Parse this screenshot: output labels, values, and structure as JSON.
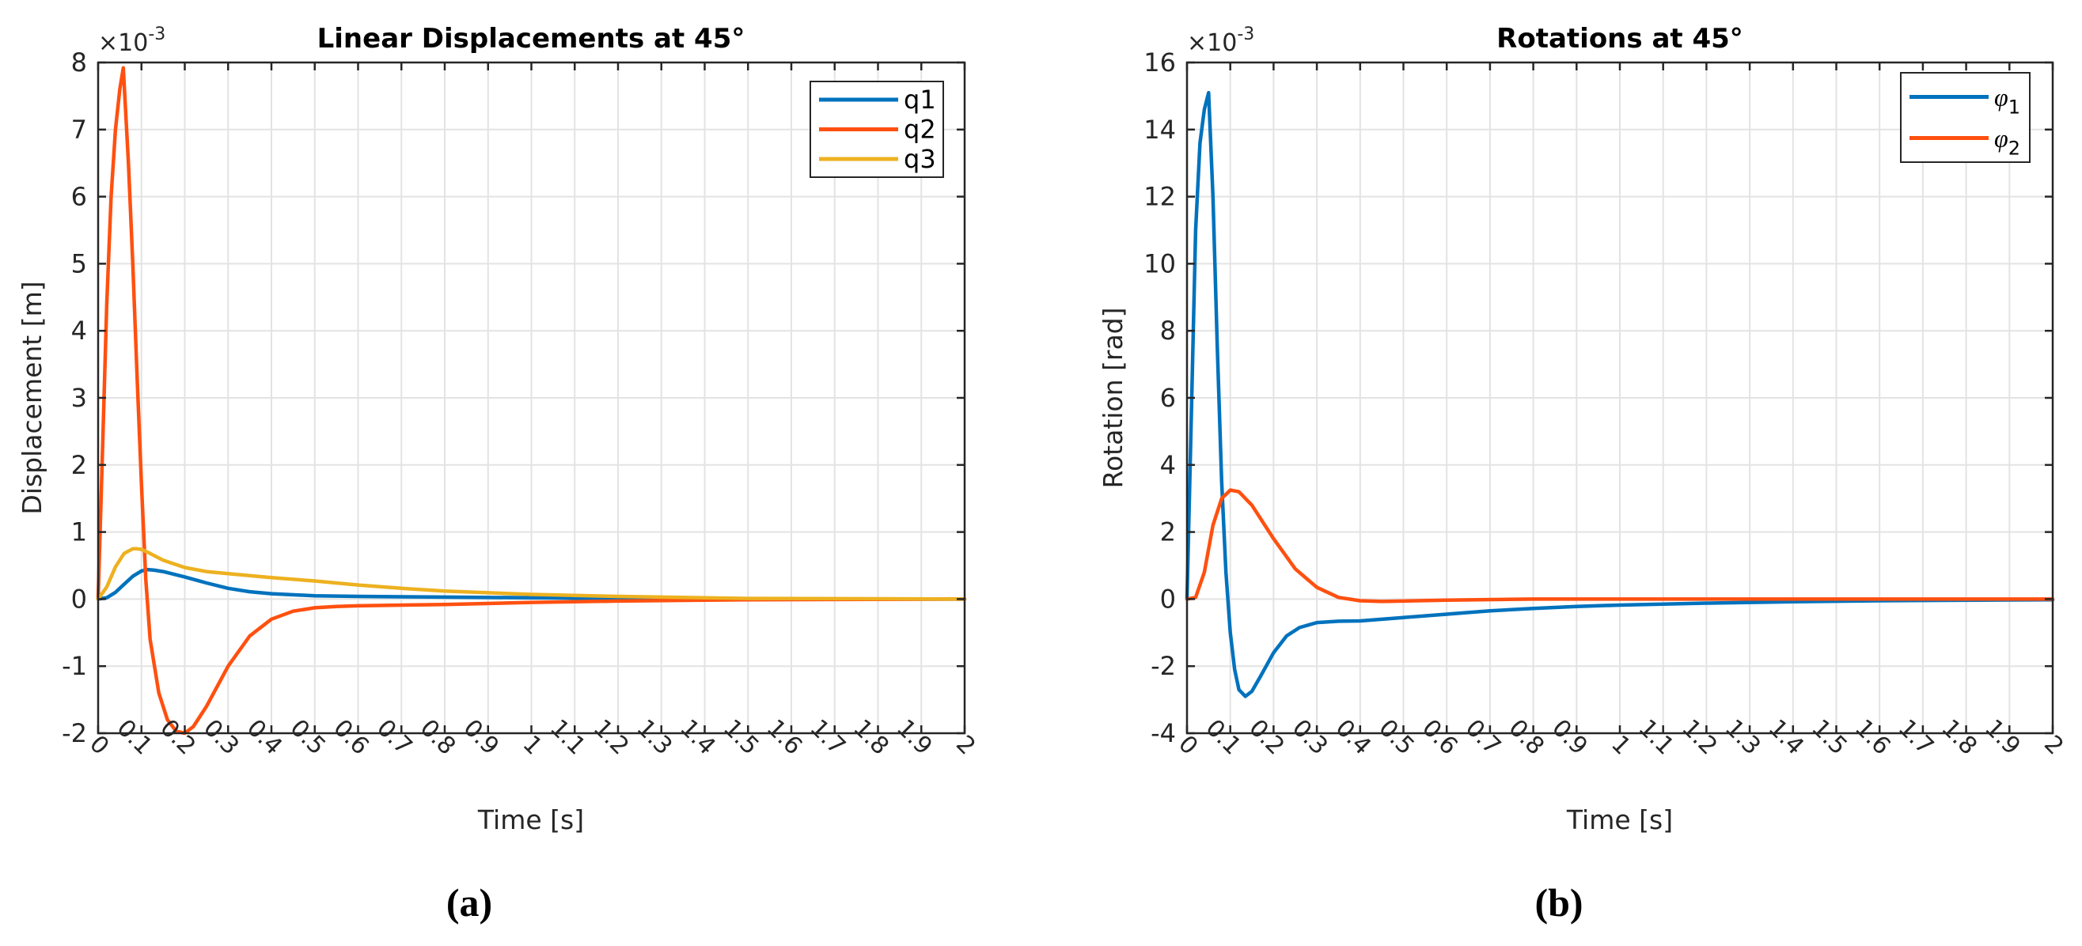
{
  "figure": {
    "panels": [
      {
        "caption": "(a)"
      },
      {
        "caption": "(b)"
      }
    ]
  },
  "chart_data": [
    {
      "type": "line",
      "title": "Linear Displacements at 45°",
      "xlabel": "Time [s]",
      "ylabel": "Displacement [m]",
      "y_exponent_label": "×10",
      "y_exponent": "-3",
      "xlim": [
        0,
        2
      ],
      "ylim": [
        -2,
        8
      ],
      "xticks": [
        0,
        0.1,
        0.2,
        0.3,
        0.4,
        0.5,
        0.6,
        0.7,
        0.8,
        0.9,
        1,
        1.1,
        1.2,
        1.3,
        1.4,
        1.5,
        1.6,
        1.7,
        1.8,
        1.9,
        2
      ],
      "xtick_labels": [
        "0",
        "0.1",
        "0.2",
        "0.3",
        "0.4",
        "0.5",
        "0.6",
        "0.7",
        "0.8",
        "0.9",
        "1",
        "1.1",
        "1.2",
        "1.3",
        "1.4",
        "1.5",
        "1.6",
        "1.7",
        "1.8",
        "1.9",
        "2"
      ],
      "yticks": [
        -2,
        -1,
        0,
        1,
        2,
        3,
        4,
        5,
        6,
        7,
        8
      ],
      "ytick_labels": [
        "-2",
        "-1",
        "0",
        "1",
        "2",
        "3",
        "4",
        "5",
        "6",
        "7",
        "8"
      ],
      "grid": true,
      "legend_position": "upper right",
      "series": [
        {
          "name": "q1",
          "color": "#0072BD",
          "x": [
            0,
            0.02,
            0.04,
            0.06,
            0.08,
            0.1,
            0.115,
            0.13,
            0.15,
            0.2,
            0.25,
            0.3,
            0.35,
            0.4,
            0.5,
            0.6,
            0.8,
            1.0,
            1.2,
            1.5,
            2.0
          ],
          "y": [
            0,
            0.02,
            0.1,
            0.22,
            0.34,
            0.42,
            0.44,
            0.43,
            0.41,
            0.33,
            0.24,
            0.16,
            0.11,
            0.08,
            0.05,
            0.04,
            0.03,
            0.02,
            0.01,
            0.0,
            0.0
          ]
        },
        {
          "name": "q2",
          "color": "#FF5010",
          "x": [
            0,
            0.01,
            0.02,
            0.03,
            0.04,
            0.05,
            0.058,
            0.07,
            0.08,
            0.09,
            0.1,
            0.11,
            0.12,
            0.14,
            0.16,
            0.18,
            0.2,
            0.22,
            0.25,
            0.3,
            0.35,
            0.4,
            0.45,
            0.5,
            0.55,
            0.6,
            0.8,
            1.0,
            1.2,
            1.5,
            2.0
          ],
          "y": [
            0,
            2.2,
            4.4,
            6.0,
            7.0,
            7.6,
            7.92,
            6.5,
            5.0,
            3.3,
            1.7,
            0.3,
            -0.6,
            -1.4,
            -1.8,
            -1.97,
            -2.0,
            -1.9,
            -1.6,
            -1.0,
            -0.55,
            -0.3,
            -0.18,
            -0.13,
            -0.11,
            -0.1,
            -0.08,
            -0.05,
            -0.03,
            -0.01,
            0.0
          ]
        },
        {
          "name": "q3",
          "color": "#EDB120",
          "x": [
            0,
            0.02,
            0.04,
            0.06,
            0.08,
            0.09,
            0.1,
            0.12,
            0.15,
            0.2,
            0.25,
            0.3,
            0.4,
            0.5,
            0.6,
            0.7,
            0.8,
            1.0,
            1.2,
            1.5,
            2.0
          ],
          "y": [
            0,
            0.18,
            0.48,
            0.68,
            0.75,
            0.75,
            0.74,
            0.68,
            0.58,
            0.47,
            0.41,
            0.38,
            0.32,
            0.27,
            0.21,
            0.16,
            0.12,
            0.07,
            0.04,
            0.01,
            0.0
          ]
        }
      ]
    },
    {
      "type": "line",
      "title": "Rotations at 45°",
      "xlabel": "Time [s]",
      "ylabel": "Rotation [rad]",
      "y_exponent_label": "×10",
      "y_exponent": "-3",
      "xlim": [
        0,
        2
      ],
      "ylim": [
        -4,
        16
      ],
      "xticks": [
        0,
        0.1,
        0.2,
        0.3,
        0.4,
        0.5,
        0.6,
        0.7,
        0.8,
        0.9,
        1,
        1.1,
        1.2,
        1.3,
        1.4,
        1.5,
        1.6,
        1.7,
        1.8,
        1.9,
        2
      ],
      "xtick_labels": [
        "0",
        "0.1",
        "0.2",
        "0.3",
        "0.4",
        "0.5",
        "0.6",
        "0.7",
        "0.8",
        "0.9",
        "1",
        "1.1",
        "1.2",
        "1.3",
        "1.4",
        "1.5",
        "1.6",
        "1.7",
        "1.8",
        "1.9",
        "2"
      ],
      "yticks": [
        -4,
        -2,
        0,
        2,
        4,
        6,
        8,
        10,
        12,
        14,
        16
      ],
      "ytick_labels": [
        "-4",
        "-2",
        "0",
        "2",
        "4",
        "6",
        "8",
        "10",
        "12",
        "14",
        "16"
      ],
      "grid": true,
      "legend_position": "upper right",
      "series": [
        {
          "name": "φ1",
          "label_base": "φ",
          "label_sub": "1",
          "color": "#0072BD",
          "x": [
            0,
            0.01,
            0.02,
            0.03,
            0.04,
            0.05,
            0.06,
            0.07,
            0.08,
            0.09,
            0.1,
            0.11,
            0.12,
            0.135,
            0.15,
            0.17,
            0.2,
            0.23,
            0.26,
            0.3,
            0.35,
            0.4,
            0.5,
            0.6,
            0.7,
            0.8,
            0.9,
            1.0,
            1.2,
            1.4,
            1.6,
            2.0
          ],
          "y": [
            0,
            5.5,
            11.0,
            13.6,
            14.6,
            15.1,
            12.0,
            7.5,
            3.5,
            0.8,
            -1.0,
            -2.1,
            -2.7,
            -2.9,
            -2.75,
            -2.3,
            -1.6,
            -1.1,
            -0.85,
            -0.7,
            -0.66,
            -0.65,
            -0.55,
            -0.45,
            -0.35,
            -0.28,
            -0.22,
            -0.18,
            -0.12,
            -0.08,
            -0.05,
            -0.02
          ]
        },
        {
          "name": "φ2",
          "label_base": "φ",
          "label_sub": "2",
          "color": "#FF5010",
          "x": [
            0,
            0.02,
            0.04,
            0.06,
            0.08,
            0.1,
            0.12,
            0.15,
            0.2,
            0.25,
            0.3,
            0.35,
            0.4,
            0.45,
            0.5,
            0.6,
            0.8,
            1.0,
            1.5,
            2.0
          ],
          "y": [
            0,
            0.05,
            0.8,
            2.2,
            3.0,
            3.25,
            3.2,
            2.8,
            1.8,
            0.9,
            0.35,
            0.05,
            -0.05,
            -0.07,
            -0.06,
            -0.03,
            0.0,
            0.0,
            0.0,
            0.0
          ]
        }
      ]
    }
  ]
}
